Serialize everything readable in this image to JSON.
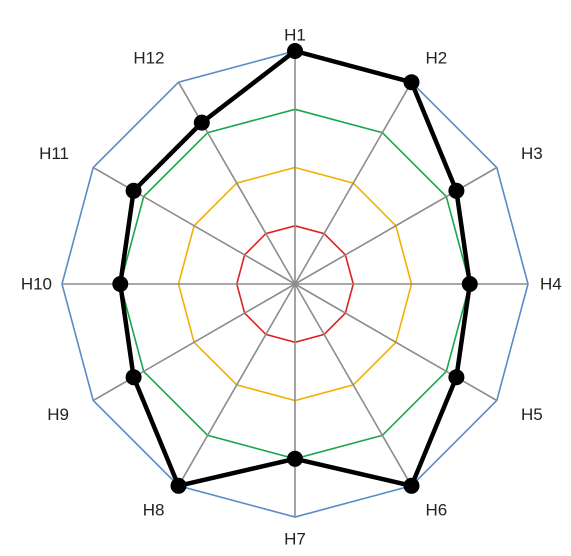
{
  "chart_data": {
    "type": "radar",
    "categories": [
      "H1",
      "H2",
      "H3",
      "H4",
      "H5",
      "H6",
      "H7",
      "H8",
      "H9",
      "H10",
      "H11",
      "H12"
    ],
    "series": [
      {
        "values": [
          1.0,
          1.0,
          0.8,
          0.75,
          0.8,
          1.0,
          0.75,
          1.0,
          0.8,
          0.75,
          0.8,
          0.8
        ]
      }
    ],
    "rings": [
      {
        "value": 0.25,
        "color": "#e02020"
      },
      {
        "value": 0.5,
        "color": "#f2b000"
      },
      {
        "value": 0.75,
        "color": "#1aa64a"
      },
      {
        "value": 1.0,
        "color": "#5b8ac8"
      }
    ],
    "range": [
      0,
      1
    ],
    "spoke_color": "#8c8c8c",
    "series_color": "#000000"
  }
}
